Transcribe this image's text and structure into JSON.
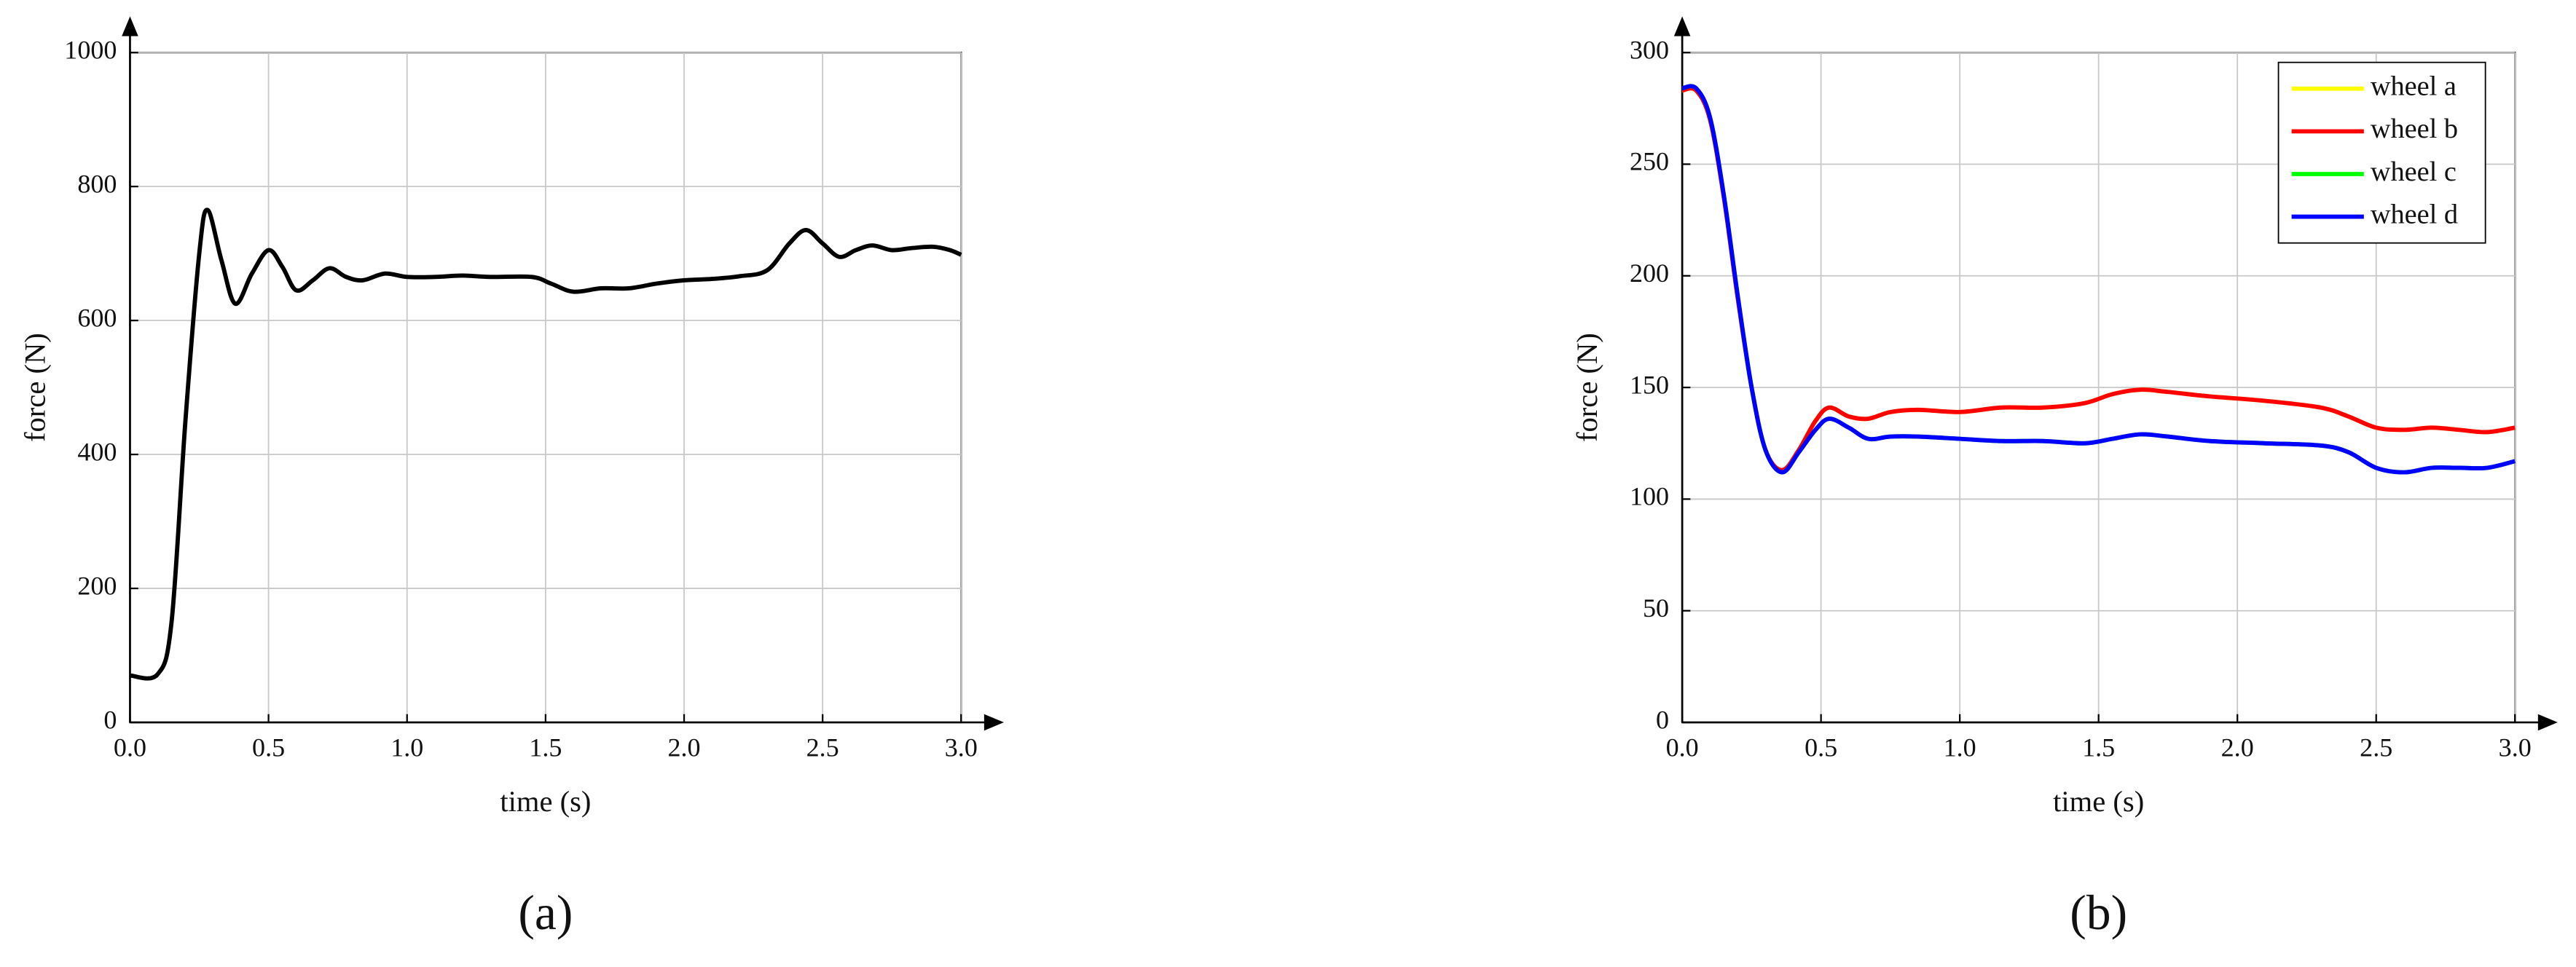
{
  "chart_data": [
    {
      "type": "line",
      "caption": "(a)",
      "xlabel": "time (s)",
      "ylabel": "force (N)",
      "xlim": [
        0,
        3
      ],
      "ylim": [
        0,
        1000
      ],
      "xticks": [
        {
          "value": 0,
          "label": "0.0"
        },
        0.5,
        {
          "value": 1,
          "label": "1.0"
        },
        1.5,
        {
          "value": 2,
          "label": "2.0"
        },
        2.5,
        {
          "value": 3,
          "label": "3.0"
        }
      ],
      "yticks": [
        0,
        200,
        400,
        600,
        800,
        1000
      ],
      "grid": true,
      "x": [
        0,
        0.1,
        0.15,
        0.2,
        0.25,
        0.28,
        0.33,
        0.38,
        0.44,
        0.5,
        0.55,
        0.6,
        0.66,
        0.72,
        0.78,
        0.84,
        0.92,
        1.0,
        1.1,
        1.2,
        1.3,
        1.45,
        1.52,
        1.6,
        1.7,
        1.8,
        1.9,
        2.0,
        2.1,
        2.2,
        2.3,
        2.38,
        2.44,
        2.5,
        2.56,
        2.62,
        2.68,
        2.75,
        2.82,
        2.9,
        2.96,
        3.0
      ],
      "series": [
        {
          "color": "#000000",
          "values": [
            70,
            72,
            150,
            450,
            700,
            765,
            690,
            625,
            670,
            705,
            680,
            645,
            660,
            678,
            665,
            660,
            670,
            665,
            665,
            667,
            665,
            665,
            655,
            643,
            648,
            648,
            655,
            660,
            662,
            666,
            675,
            715,
            735,
            715,
            695,
            705,
            712,
            705,
            708,
            710,
            705,
            698
          ]
        }
      ]
    },
    {
      "type": "line",
      "caption": "(b)",
      "xlabel": "time (s)",
      "ylabel": "force (N)",
      "xlim": [
        0,
        3
      ],
      "ylim": [
        0,
        300
      ],
      "xticks": [
        {
          "value": 0,
          "label": "0.0"
        },
        0.5,
        {
          "value": 1,
          "label": "1.0"
        },
        1.5,
        {
          "value": 2,
          "label": "2.0"
        },
        2.5,
        {
          "value": 3,
          "label": "3.0"
        }
      ],
      "yticks": [
        0,
        50,
        100,
        150,
        200,
        250,
        300
      ],
      "grid": true,
      "legend": "upper right",
      "x": [
        0,
        0.05,
        0.1,
        0.15,
        0.2,
        0.25,
        0.3,
        0.36,
        0.42,
        0.48,
        0.53,
        0.6,
        0.67,
        0.75,
        0.85,
        1.0,
        1.15,
        1.3,
        1.45,
        1.55,
        1.65,
        1.75,
        1.9,
        2.1,
        2.3,
        2.4,
        2.5,
        2.6,
        2.7,
        2.8,
        2.9,
        3.0
      ],
      "series": [
        {
          "name": "wheel a",
          "color": "#ffff00",
          "values": [
            283,
            283,
            270,
            235,
            190,
            150,
            122,
            113,
            122,
            135,
            141,
            137,
            136,
            139,
            140,
            139,
            141,
            141,
            143,
            147,
            149,
            148,
            146,
            144,
            141,
            137,
            132,
            131,
            132,
            131,
            130,
            132
          ]
        },
        {
          "name": "wheel b",
          "color": "#ff0000",
          "values": [
            283,
            283,
            270,
            235,
            190,
            150,
            122,
            113,
            122,
            135,
            141,
            137,
            136,
            139,
            140,
            139,
            141,
            141,
            143,
            147,
            149,
            148,
            146,
            144,
            141,
            137,
            132,
            131,
            132,
            131,
            130,
            132
          ]
        },
        {
          "name": "wheel c",
          "color": "#00ff00",
          "values": [
            284,
            284,
            271,
            236,
            191,
            150,
            122,
            112,
            121,
            131,
            136,
            132,
            127,
            128,
            128,
            127,
            126,
            126,
            125,
            127,
            129,
            128,
            126,
            125,
            124,
            121,
            114,
            112,
            114,
            114,
            114,
            117
          ]
        },
        {
          "name": "wheel d",
          "color": "#0000ff",
          "values": [
            284,
            284,
            271,
            236,
            191,
            150,
            122,
            112,
            121,
            131,
            136,
            132,
            127,
            128,
            128,
            127,
            126,
            126,
            125,
            127,
            129,
            128,
            126,
            125,
            124,
            121,
            114,
            112,
            114,
            114,
            114,
            117
          ]
        }
      ]
    }
  ]
}
